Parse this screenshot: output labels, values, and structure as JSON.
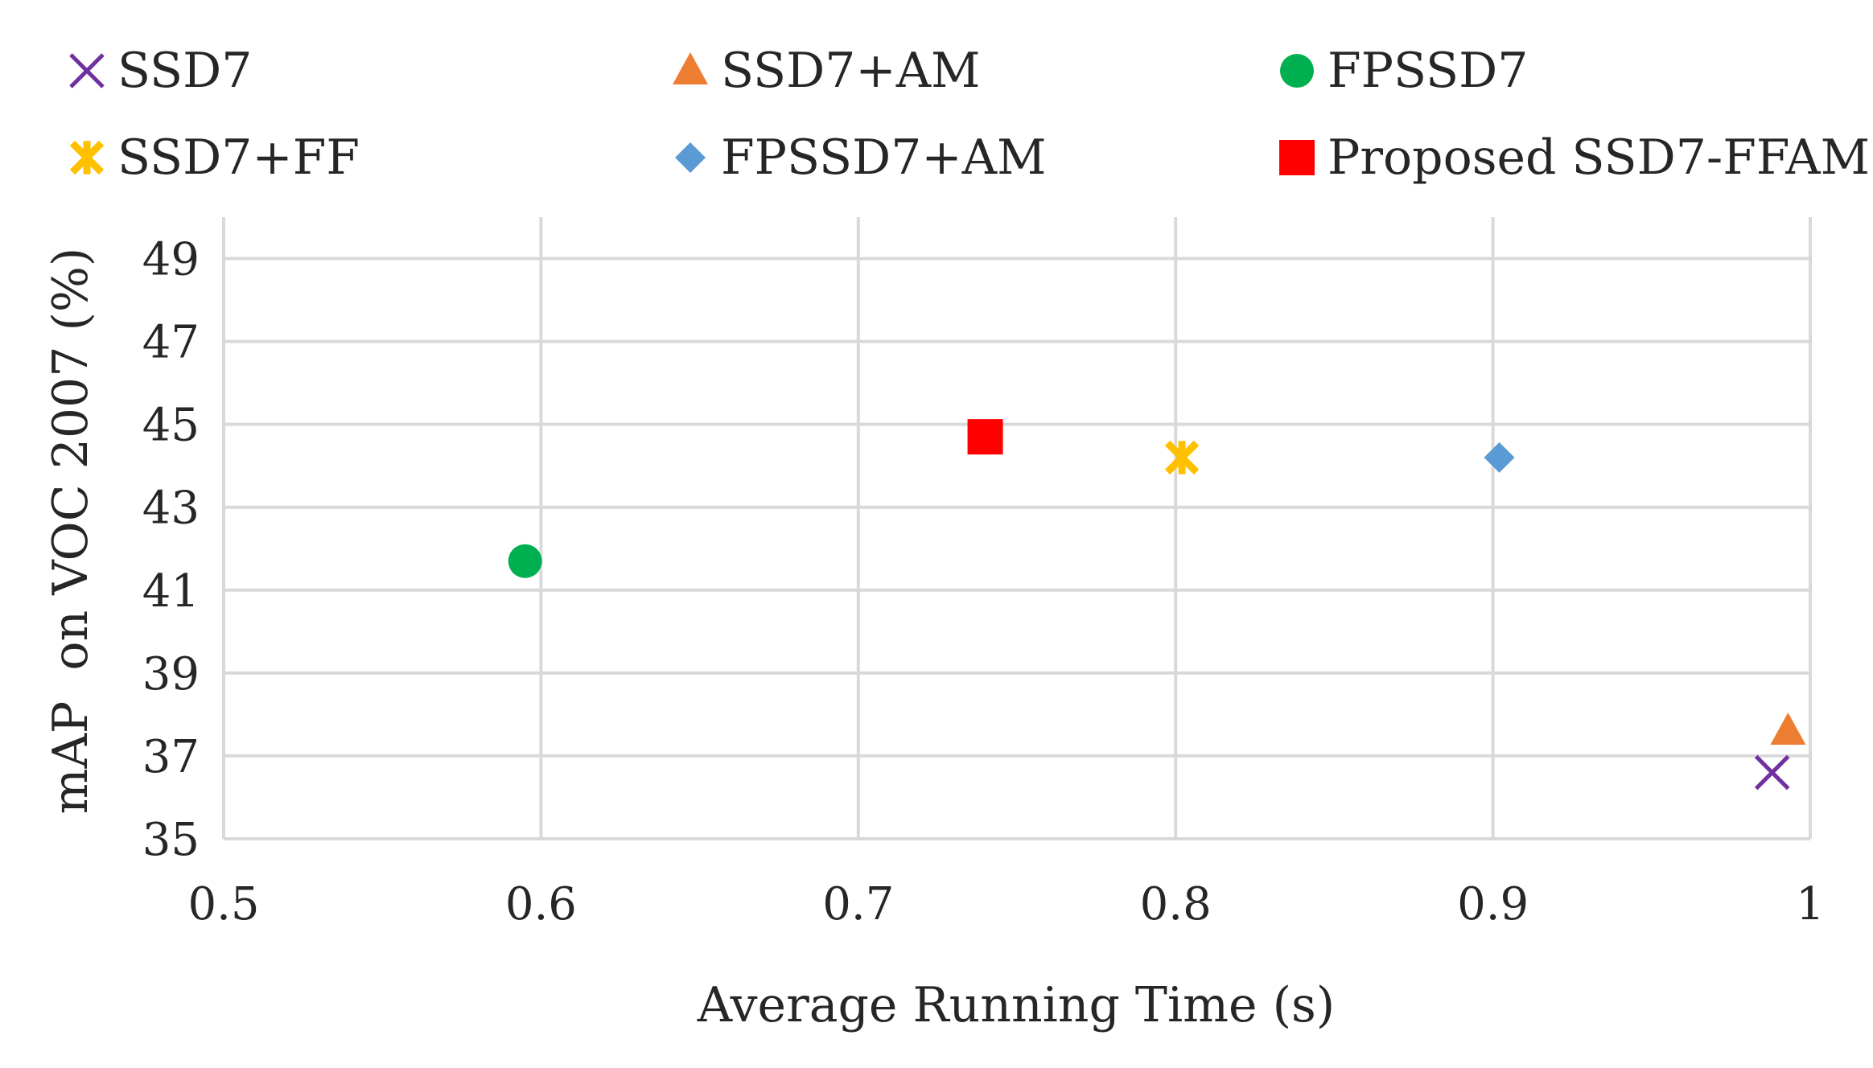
{
  "chart_data": {
    "type": "scatter",
    "title": "",
    "xlabel": "Average Running Time (s)",
    "ylabel": "mAP  on VOC 2007 (%)",
    "xlim": [
      0.5,
      1.0
    ],
    "ylim": [
      35,
      50
    ],
    "x_ticks": [
      "0.5",
      "0.6",
      "0.7",
      "0.8",
      "0.9",
      "1"
    ],
    "y_ticks": [
      "35",
      "37",
      "39",
      "41",
      "43",
      "45",
      "47",
      "49"
    ],
    "grid": true,
    "legend_position": "top",
    "series": [
      {
        "name": "SSD7",
        "marker": "x",
        "color": "#7030a0",
        "x": 0.988,
        "y": 36.6
      },
      {
        "name": "SSD7+AM",
        "marker": "triangle",
        "color": "#ed7d31",
        "x": 0.993,
        "y": 37.6
      },
      {
        "name": "FPSSD7",
        "marker": "circle",
        "color": "#00b050",
        "x": 0.595,
        "y": 41.7
      },
      {
        "name": "SSD7+FF",
        "marker": "star",
        "color": "#ffc000",
        "x": 0.802,
        "y": 44.2
      },
      {
        "name": "FPSSD7+AM",
        "marker": "diamond",
        "color": "#5b9bd5",
        "x": 0.902,
        "y": 44.2
      },
      {
        "name": "Proposed SSD7-FFAM",
        "marker": "square",
        "color": "#ff0000",
        "x": 0.74,
        "y": 44.7
      }
    ]
  }
}
